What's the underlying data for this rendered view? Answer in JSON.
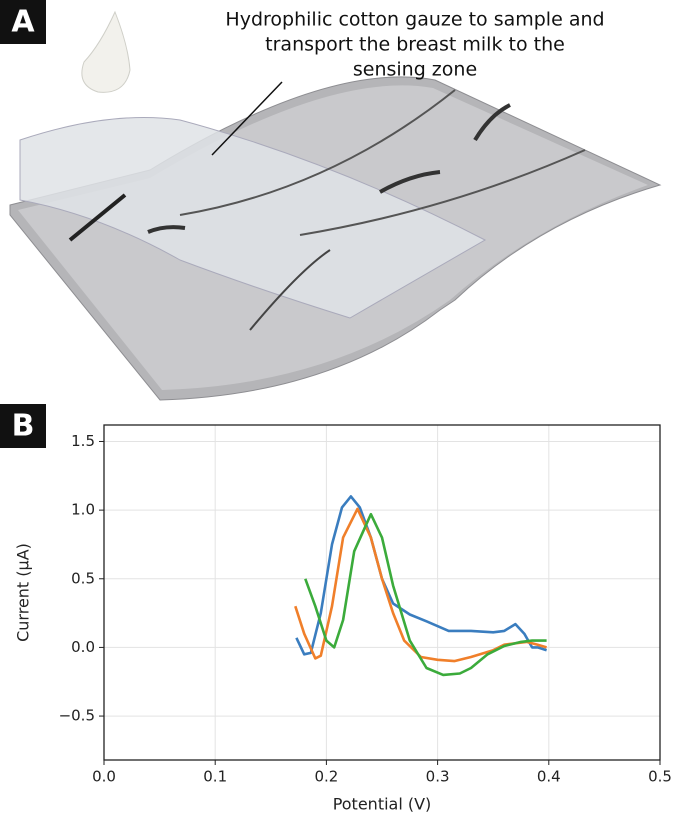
{
  "panel_a": {
    "label": "A",
    "annotation": [
      "Hydrophilic cotton gauze to sample and",
      "transport the breast milk to the",
      "sensing zone"
    ]
  },
  "panel_b": {
    "label": "B"
  },
  "chart_data": {
    "type": "line",
    "xlabel": "Potential (V)",
    "ylabel": "Current (μA)",
    "xlim": [
      0,
      0.5
    ],
    "ylim": [
      -0.82,
      1.62
    ],
    "xticks": [
      {
        "value": 0,
        "label": "0.0"
      },
      0.1,
      0.2,
      0.3,
      0.4,
      0.5
    ],
    "yticks": [
      {
        "value": -0.5,
        "label": "−0.5"
      },
      {
        "value": 0,
        "label": "0.0"
      },
      0.5,
      {
        "value": 1,
        "label": "1.0"
      },
      1.5
    ],
    "grid": true,
    "series": [
      {
        "color": "#3a7dbf",
        "x": [
          0.173,
          0.18,
          0.186,
          0.195,
          0.205,
          0.214,
          0.222,
          0.23,
          0.24,
          0.25,
          0.26,
          0.275,
          0.29,
          0.31,
          0.33,
          0.35,
          0.36,
          0.37,
          0.378,
          0.385,
          0.39,
          0.398
        ],
        "values": [
          0.07,
          -0.05,
          -0.04,
          0.25,
          0.75,
          1.02,
          1.1,
          1.02,
          0.8,
          0.5,
          0.32,
          0.24,
          0.19,
          0.12,
          0.12,
          0.11,
          0.12,
          0.17,
          0.1,
          0.0,
          0.0,
          -0.02
        ]
      },
      {
        "color": "#f07f2a",
        "x": [
          0.172,
          0.18,
          0.19,
          0.195,
          0.205,
          0.215,
          0.228,
          0.24,
          0.25,
          0.26,
          0.27,
          0.285,
          0.3,
          0.315,
          0.33,
          0.35,
          0.36,
          0.38,
          0.39,
          0.398
        ],
        "values": [
          0.3,
          0.1,
          -0.08,
          -0.06,
          0.3,
          0.8,
          1.01,
          0.8,
          0.5,
          0.25,
          0.05,
          -0.07,
          -0.09,
          -0.1,
          -0.07,
          -0.02,
          0.02,
          0.04,
          0.02,
          0.0
        ]
      },
      {
        "color": "#3bab3b",
        "x": [
          0.181,
          0.19,
          0.2,
          0.207,
          0.215,
          0.225,
          0.24,
          0.25,
          0.26,
          0.275,
          0.29,
          0.305,
          0.32,
          0.33,
          0.345,
          0.36,
          0.375,
          0.385,
          0.398
        ],
        "values": [
          0.5,
          0.3,
          0.05,
          0.0,
          0.2,
          0.7,
          0.97,
          0.8,
          0.45,
          0.05,
          -0.15,
          -0.2,
          -0.19,
          -0.15,
          -0.05,
          0.01,
          0.04,
          0.05,
          0.05
        ]
      }
    ]
  }
}
